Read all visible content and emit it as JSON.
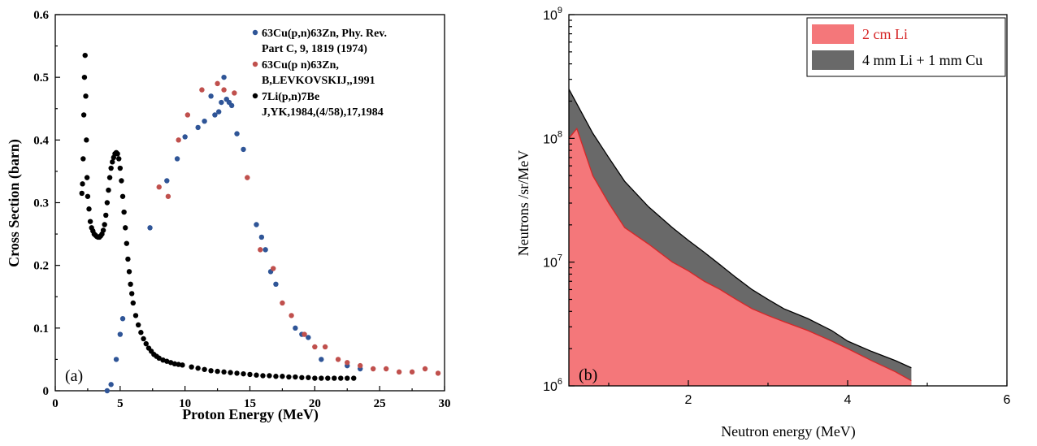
{
  "chart_data": [
    {
      "type": "scatter",
      "panel_label": "(a)",
      "xlabel": "Proton Energy (MeV)",
      "ylabel": "Cross Section (barn)",
      "xlim": [
        0,
        30
      ],
      "ylim": [
        0,
        0.6
      ],
      "xticks": [
        "0",
        "5",
        "10",
        "15",
        "20",
        "25",
        "30"
      ],
      "yticks": [
        "0",
        "0.1",
        "0.2",
        "0.3",
        "0.4",
        "0.5",
        "0.6"
      ],
      "grid": false,
      "legend_position": "top-right",
      "series": [
        {
          "name": "63Cu(p,n)63Zn, Phy. Rev. Part C, 9, 1819 (1974)",
          "legend_lines": [
            "63Cu(p,n)63Zn, Phy. Rev.",
            "Part C, 9, 1819 (1974)"
          ],
          "color": "#2f5597",
          "x": [
            4.0,
            4.3,
            4.7,
            5.0,
            5.2,
            7.3,
            8.6,
            9.4,
            10.0,
            11.0,
            11.5,
            12.0,
            12.3,
            12.6,
            12.8,
            13.0,
            13.2,
            13.4,
            13.6,
            14.0,
            14.5,
            15.5,
            15.9,
            16.2,
            16.6,
            17.0,
            18.5,
            19.0,
            19.5,
            20.5,
            22.5,
            23.5
          ],
          "y": [
            0.0,
            0.01,
            0.05,
            0.09,
            0.115,
            0.26,
            0.335,
            0.37,
            0.405,
            0.42,
            0.43,
            0.47,
            0.44,
            0.445,
            0.46,
            0.5,
            0.465,
            0.46,
            0.455,
            0.41,
            0.385,
            0.265,
            0.245,
            0.225,
            0.19,
            0.17,
            0.1,
            0.09,
            0.085,
            0.05,
            0.04,
            0.035
          ]
        },
        {
          "name": "63Cu(p n)63Zn, B,LEVKOVSKIJ,,1991",
          "legend_lines": [
            "63Cu(p n)63Zn,",
            "B,LEVKOVSKIJ,,1991"
          ],
          "color": "#c0504d",
          "x": [
            8.0,
            8.7,
            9.5,
            10.2,
            11.3,
            12.5,
            13.0,
            13.8,
            14.8,
            15.8,
            16.8,
            17.5,
            18.2,
            19.2,
            20.0,
            20.8,
            21.8,
            22.5,
            23.5,
            24.5,
            25.5,
            26.5,
            27.5,
            28.5,
            29.5
          ],
          "y": [
            0.325,
            0.31,
            0.4,
            0.44,
            0.48,
            0.49,
            0.48,
            0.475,
            0.34,
            0.225,
            0.195,
            0.14,
            0.12,
            0.09,
            0.07,
            0.07,
            0.05,
            0.045,
            0.04,
            0.035,
            0.035,
            0.03,
            0.03,
            0.035,
            0.028
          ]
        },
        {
          "name": "7Li(p,n)7Be J,YK,1984,(4/58),17,1984",
          "legend_lines": [
            "7Li(p,n)7Be",
            "J,YK,1984,(4/58),17,1984"
          ],
          "color": "#000000",
          "x": [
            2.05,
            2.1,
            2.15,
            2.2,
            2.25,
            2.3,
            2.35,
            2.4,
            2.45,
            2.5,
            2.6,
            2.7,
            2.8,
            2.9,
            3.0,
            3.1,
            3.2,
            3.3,
            3.4,
            3.5,
            3.6,
            3.7,
            3.8,
            3.9,
            4.0,
            4.1,
            4.2,
            4.3,
            4.4,
            4.5,
            4.6,
            4.7,
            4.8,
            4.9,
            5.0,
            5.1,
            5.2,
            5.3,
            5.4,
            5.5,
            5.6,
            5.7,
            5.8,
            5.9,
            6.0,
            6.2,
            6.4,
            6.6,
            6.8,
            7.0,
            7.2,
            7.4,
            7.6,
            7.8,
            8.0,
            8.3,
            8.6,
            8.9,
            9.2,
            9.5,
            9.8,
            10.5,
            11.0,
            11.5,
            12.0,
            12.5,
            13.0,
            13.5,
            14.0,
            14.5,
            15.0,
            15.5,
            16.0,
            16.5,
            17.0,
            17.5,
            18.0,
            18.5,
            19.0,
            19.5,
            20.0,
            20.5,
            21.0,
            21.5,
            22.0,
            22.5,
            23.0
          ],
          "y": [
            0.315,
            0.33,
            0.37,
            0.44,
            0.5,
            0.535,
            0.47,
            0.4,
            0.34,
            0.31,
            0.29,
            0.27,
            0.26,
            0.255,
            0.25,
            0.248,
            0.246,
            0.245,
            0.245,
            0.247,
            0.25,
            0.256,
            0.265,
            0.28,
            0.3,
            0.32,
            0.34,
            0.355,
            0.365,
            0.372,
            0.378,
            0.38,
            0.378,
            0.37,
            0.355,
            0.335,
            0.31,
            0.285,
            0.26,
            0.235,
            0.21,
            0.19,
            0.17,
            0.155,
            0.14,
            0.12,
            0.105,
            0.093,
            0.083,
            0.075,
            0.068,
            0.063,
            0.058,
            0.055,
            0.052,
            0.049,
            0.047,
            0.045,
            0.043,
            0.042,
            0.041,
            0.038,
            0.036,
            0.034,
            0.032,
            0.031,
            0.03,
            0.029,
            0.028,
            0.027,
            0.026,
            0.025,
            0.024,
            0.024,
            0.023,
            0.023,
            0.022,
            0.022,
            0.021,
            0.021,
            0.02,
            0.02,
            0.02,
            0.02,
            0.02,
            0.02,
            0.02
          ]
        }
      ]
    },
    {
      "type": "area",
      "panel_label": "(b)",
      "xlabel": "Neutron energy (MeV)",
      "ylabel": "Neutrons /sr/MeV",
      "xlim": [
        0.5,
        6
      ],
      "ylim": [
        1000000,
        1000000000
      ],
      "yscale": "log",
      "xticks": [
        "2",
        "4",
        "6"
      ],
      "yticks": [
        {
          "base": "10",
          "exp": "6"
        },
        {
          "base": "10",
          "exp": "7"
        },
        {
          "base": "10",
          "exp": "8"
        },
        {
          "base": "10",
          "exp": "9"
        }
      ],
      "grid": false,
      "legend_position": "top-right",
      "series": [
        {
          "name": "2 cm Li",
          "color": "#f4777a",
          "label_color": "#d62728",
          "x": [
            0.5,
            0.6,
            0.8,
            1.0,
            1.2,
            1.5,
            1.8,
            2.0,
            2.2,
            2.4,
            2.6,
            2.8,
            3.0,
            3.2,
            3.5,
            3.8,
            4.0,
            4.3,
            4.6,
            4.8
          ],
          "y": [
            100000000,
            120000000,
            50000000,
            30000000,
            19000000,
            14000000,
            10000000,
            8500000,
            7000000,
            6000000,
            5000000,
            4200000,
            3700000,
            3300000,
            2800000,
            2300000,
            2000000,
            1600000,
            1300000,
            1100000
          ]
        },
        {
          "name": "4 mm Li + 1 mm Cu",
          "color": "#696969",
          "label_color": "#000000",
          "x": [
            0.5,
            0.6,
            0.8,
            1.0,
            1.2,
            1.5,
            1.8,
            2.0,
            2.2,
            2.4,
            2.6,
            2.8,
            3.0,
            3.2,
            3.5,
            3.8,
            4.0,
            4.3,
            4.6,
            4.8
          ],
          "y": [
            250000000,
            190000000,
            110000000,
            70000000,
            45000000,
            28000000,
            19000000,
            15000000,
            12000000,
            9500000,
            7500000,
            6000000,
            5000000,
            4200000,
            3500000,
            2800000,
            2300000,
            1900000,
            1600000,
            1400000
          ]
        }
      ]
    }
  ]
}
